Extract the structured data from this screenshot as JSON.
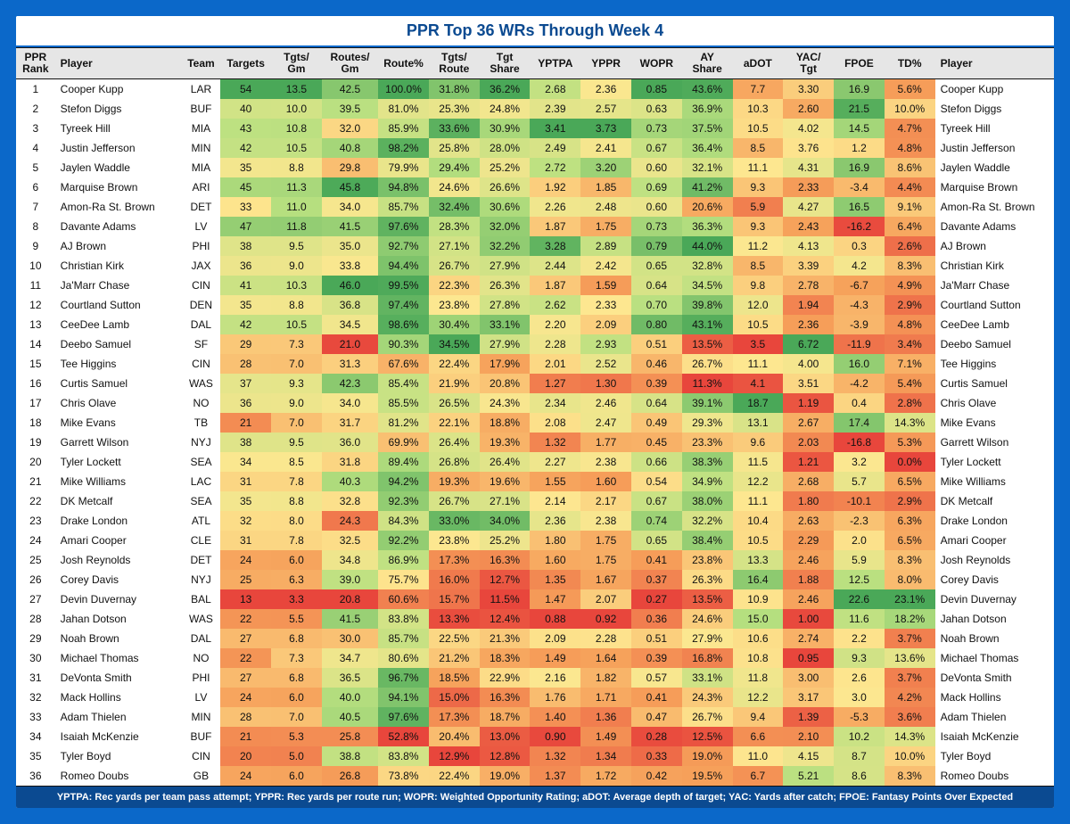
{
  "title": "PPR Top 36 WRs Through Week 4",
  "footer": "YPTPA: Rec yards per team pass attempt; YPPR: Rec yards per route run; WOPR: Weighted Opportunity Rating; aDOT: Average depth of target; YAC: Yards after catch; FPOE: Fantasy Points Over Expected",
  "columns": [
    {
      "key": "rank",
      "label": "PPR Rank",
      "heat": false,
      "fmt": "int",
      "align": "center",
      "w": "c-rank"
    },
    {
      "key": "player",
      "label": "Player",
      "heat": false,
      "fmt": "text",
      "align": "left",
      "w": "c-player"
    },
    {
      "key": "team",
      "label": "Team",
      "heat": false,
      "fmt": "text",
      "align": "center",
      "w": "c-team"
    },
    {
      "key": "targets",
      "label": "Targets",
      "heat": true,
      "fmt": "int",
      "align": "center",
      "w": "c-num"
    },
    {
      "key": "tgts_gm",
      "label": "Tgts/ Gm",
      "heat": true,
      "fmt": "dec1",
      "align": "center",
      "w": "c-num"
    },
    {
      "key": "routes_gm",
      "label": "Routes/ Gm",
      "heat": true,
      "fmt": "dec1",
      "align": "center",
      "w": "c-num-w"
    },
    {
      "key": "route_pct",
      "label": "Route%",
      "heat": true,
      "fmt": "pct1",
      "align": "center",
      "w": "c-num"
    },
    {
      "key": "tgts_route",
      "label": "Tgts/ Route",
      "heat": true,
      "fmt": "pct1",
      "align": "center",
      "w": "c-num"
    },
    {
      "key": "tgt_share",
      "label": "Tgt Share",
      "heat": true,
      "fmt": "pct1",
      "align": "center",
      "w": "c-num"
    },
    {
      "key": "yptpa",
      "label": "YPTPA",
      "heat": true,
      "fmt": "dec2",
      "align": "center",
      "w": "c-num"
    },
    {
      "key": "yppr",
      "label": "YPPR",
      "heat": true,
      "fmt": "dec2",
      "align": "center",
      "w": "c-num"
    },
    {
      "key": "wopr",
      "label": "WOPR",
      "heat": true,
      "fmt": "dec2",
      "align": "center",
      "w": "c-num"
    },
    {
      "key": "ay_share",
      "label": "AY Share",
      "heat": true,
      "fmt": "pct1",
      "align": "center",
      "w": "c-num"
    },
    {
      "key": "adot",
      "label": "aDOT",
      "heat": true,
      "fmt": "dec1",
      "align": "center",
      "w": "c-num"
    },
    {
      "key": "yac_tgt",
      "label": "YAC/ Tgt",
      "heat": true,
      "fmt": "dec2",
      "align": "center",
      "w": "c-num"
    },
    {
      "key": "fpoe",
      "label": "FPOE",
      "heat": true,
      "fmt": "dec1",
      "align": "center",
      "w": "c-num"
    },
    {
      "key": "td_pct",
      "label": "TD%",
      "heat": true,
      "fmt": "pct1",
      "align": "center",
      "w": "c-num"
    },
    {
      "key": "player2",
      "label": "Player",
      "heat": false,
      "fmt": "text",
      "align": "left",
      "w": "c-player2"
    }
  ],
  "heat_scale": {
    "stops": [
      {
        "t": 0.0,
        "color": "#e8463c"
      },
      {
        "t": 0.25,
        "color": "#f6a05a"
      },
      {
        "t": 0.5,
        "color": "#fde790"
      },
      {
        "t": 0.75,
        "color": "#b8e080"
      },
      {
        "t": 1.0,
        "color": "#4aa858"
      }
    ]
  },
  "rows": [
    {
      "rank": 1,
      "player": "Cooper Kupp",
      "team": "LAR",
      "targets": 54,
      "tgts_gm": 13.5,
      "routes_gm": 42.5,
      "route_pct": 100.0,
      "tgts_route": 31.8,
      "tgt_share": 36.2,
      "yptpa": 2.68,
      "yppr": 2.36,
      "wopr": 0.85,
      "ay_share": 43.6,
      "adot": 7.7,
      "yac_tgt": 3.3,
      "fpoe": 16.9,
      "td_pct": 5.6
    },
    {
      "rank": 2,
      "player": "Stefon Diggs",
      "team": "BUF",
      "targets": 40,
      "tgts_gm": 10.0,
      "routes_gm": 39.5,
      "route_pct": 81.0,
      "tgts_route": 25.3,
      "tgt_share": 24.8,
      "yptpa": 2.39,
      "yppr": 2.57,
      "wopr": 0.63,
      "ay_share": 36.9,
      "adot": 10.3,
      "yac_tgt": 2.6,
      "fpoe": 21.5,
      "td_pct": 10.0
    },
    {
      "rank": 3,
      "player": "Tyreek Hill",
      "team": "MIA",
      "targets": 43,
      "tgts_gm": 10.8,
      "routes_gm": 32.0,
      "route_pct": 85.9,
      "tgts_route": 33.6,
      "tgt_share": 30.9,
      "yptpa": 3.41,
      "yppr": 3.73,
      "wopr": 0.73,
      "ay_share": 37.5,
      "adot": 10.5,
      "yac_tgt": 4.02,
      "fpoe": 14.5,
      "td_pct": 4.7
    },
    {
      "rank": 4,
      "player": "Justin Jefferson",
      "team": "MIN",
      "targets": 42,
      "tgts_gm": 10.5,
      "routes_gm": 40.8,
      "route_pct": 98.2,
      "tgts_route": 25.8,
      "tgt_share": 28.0,
      "yptpa": 2.49,
      "yppr": 2.41,
      "wopr": 0.67,
      "ay_share": 36.4,
      "adot": 8.5,
      "yac_tgt": 3.76,
      "fpoe": 1.2,
      "td_pct": 4.8
    },
    {
      "rank": 5,
      "player": "Jaylen Waddle",
      "team": "MIA",
      "targets": 35,
      "tgts_gm": 8.8,
      "routes_gm": 29.8,
      "route_pct": 79.9,
      "tgts_route": 29.4,
      "tgt_share": 25.2,
      "yptpa": 2.72,
      "yppr": 3.2,
      "wopr": 0.6,
      "ay_share": 32.1,
      "adot": 11.1,
      "yac_tgt": 4.31,
      "fpoe": 16.9,
      "td_pct": 8.6
    },
    {
      "rank": 6,
      "player": "Marquise Brown",
      "team": "ARI",
      "targets": 45,
      "tgts_gm": 11.3,
      "routes_gm": 45.8,
      "route_pct": 94.8,
      "tgts_route": 24.6,
      "tgt_share": 26.6,
      "yptpa": 1.92,
      "yppr": 1.85,
      "wopr": 0.69,
      "ay_share": 41.2,
      "adot": 9.3,
      "yac_tgt": 2.33,
      "fpoe": -3.4,
      "td_pct": 4.4
    },
    {
      "rank": 7,
      "player": "Amon-Ra St. Brown",
      "team": "DET",
      "targets": 33,
      "tgts_gm": 11.0,
      "routes_gm": 34.0,
      "route_pct": 85.7,
      "tgts_route": 32.4,
      "tgt_share": 30.6,
      "yptpa": 2.26,
      "yppr": 2.48,
      "wopr": 0.6,
      "ay_share": 20.6,
      "adot": 5.9,
      "yac_tgt": 4.27,
      "fpoe": 16.5,
      "td_pct": 9.1
    },
    {
      "rank": 8,
      "player": "Davante Adams",
      "team": "LV",
      "targets": 47,
      "tgts_gm": 11.8,
      "routes_gm": 41.5,
      "route_pct": 97.6,
      "tgts_route": 28.3,
      "tgt_share": 32.0,
      "yptpa": 1.87,
      "yppr": 1.75,
      "wopr": 0.73,
      "ay_share": 36.3,
      "adot": 9.3,
      "yac_tgt": 2.43,
      "fpoe": -16.2,
      "td_pct": 6.4
    },
    {
      "rank": 9,
      "player": "AJ Brown",
      "team": "PHI",
      "targets": 38,
      "tgts_gm": 9.5,
      "routes_gm": 35.0,
      "route_pct": 92.7,
      "tgts_route": 27.1,
      "tgt_share": 32.2,
      "yptpa": 3.28,
      "yppr": 2.89,
      "wopr": 0.79,
      "ay_share": 44.0,
      "adot": 11.2,
      "yac_tgt": 4.13,
      "fpoe": 0.3,
      "td_pct": 2.6
    },
    {
      "rank": 10,
      "player": "Christian Kirk",
      "team": "JAX",
      "targets": 36,
      "tgts_gm": 9.0,
      "routes_gm": 33.8,
      "route_pct": 94.4,
      "tgts_route": 26.7,
      "tgt_share": 27.9,
      "yptpa": 2.44,
      "yppr": 2.42,
      "wopr": 0.65,
      "ay_share": 32.8,
      "adot": 8.5,
      "yac_tgt": 3.39,
      "fpoe": 4.2,
      "td_pct": 8.3
    },
    {
      "rank": 11,
      "player": "Ja'Marr Chase",
      "team": "CIN",
      "targets": 41,
      "tgts_gm": 10.3,
      "routes_gm": 46.0,
      "route_pct": 99.5,
      "tgts_route": 22.3,
      "tgt_share": 26.3,
      "yptpa": 1.87,
      "yppr": 1.59,
      "wopr": 0.64,
      "ay_share": 34.5,
      "adot": 9.8,
      "yac_tgt": 2.78,
      "fpoe": -6.7,
      "td_pct": 4.9
    },
    {
      "rank": 12,
      "player": "Courtland Sutton",
      "team": "DEN",
      "targets": 35,
      "tgts_gm": 8.8,
      "routes_gm": 36.8,
      "route_pct": 97.4,
      "tgts_route": 23.8,
      "tgt_share": 27.8,
      "yptpa": 2.62,
      "yppr": 2.33,
      "wopr": 0.7,
      "ay_share": 39.8,
      "adot": 12.0,
      "yac_tgt": 1.94,
      "fpoe": -4.3,
      "td_pct": 2.9
    },
    {
      "rank": 13,
      "player": "CeeDee Lamb",
      "team": "DAL",
      "targets": 42,
      "tgts_gm": 10.5,
      "routes_gm": 34.5,
      "route_pct": 98.6,
      "tgts_route": 30.4,
      "tgt_share": 33.1,
      "yptpa": 2.2,
      "yppr": 2.09,
      "wopr": 0.8,
      "ay_share": 43.1,
      "adot": 10.5,
      "yac_tgt": 2.36,
      "fpoe": -3.9,
      "td_pct": 4.8
    },
    {
      "rank": 14,
      "player": "Deebo Samuel",
      "team": "SF",
      "targets": 29,
      "tgts_gm": 7.3,
      "routes_gm": 21.0,
      "route_pct": 90.3,
      "tgts_route": 34.5,
      "tgt_share": 27.9,
      "yptpa": 2.28,
      "yppr": 2.93,
      "wopr": 0.51,
      "ay_share": 13.5,
      "adot": 3.5,
      "yac_tgt": 6.72,
      "fpoe": -11.9,
      "td_pct": 3.4
    },
    {
      "rank": 15,
      "player": "Tee Higgins",
      "team": "CIN",
      "targets": 28,
      "tgts_gm": 7.0,
      "routes_gm": 31.3,
      "route_pct": 67.6,
      "tgts_route": 22.4,
      "tgt_share": 17.9,
      "yptpa": 2.01,
      "yppr": 2.52,
      "wopr": 0.46,
      "ay_share": 26.7,
      "adot": 11.1,
      "yac_tgt": 4.0,
      "fpoe": 16.0,
      "td_pct": 7.1
    },
    {
      "rank": 16,
      "player": "Curtis Samuel",
      "team": "WAS",
      "targets": 37,
      "tgts_gm": 9.3,
      "routes_gm": 42.3,
      "route_pct": 85.4,
      "tgts_route": 21.9,
      "tgt_share": 20.8,
      "yptpa": 1.27,
      "yppr": 1.3,
      "wopr": 0.39,
      "ay_share": 11.3,
      "adot": 4.1,
      "yac_tgt": 3.51,
      "fpoe": -4.2,
      "td_pct": 5.4
    },
    {
      "rank": 17,
      "player": "Chris Olave",
      "team": "NO",
      "targets": 36,
      "tgts_gm": 9.0,
      "routes_gm": 34.0,
      "route_pct": 85.5,
      "tgts_route": 26.5,
      "tgt_share": 24.3,
      "yptpa": 2.34,
      "yppr": 2.46,
      "wopr": 0.64,
      "ay_share": 39.1,
      "adot": 18.7,
      "yac_tgt": 1.19,
      "fpoe": 0.4,
      "td_pct": 2.8
    },
    {
      "rank": 18,
      "player": "Mike Evans",
      "team": "TB",
      "targets": 21,
      "tgts_gm": 7.0,
      "routes_gm": 31.7,
      "route_pct": 81.2,
      "tgts_route": 22.1,
      "tgt_share": 18.8,
      "yptpa": 2.08,
      "yppr": 2.47,
      "wopr": 0.49,
      "ay_share": 29.3,
      "adot": 13.1,
      "yac_tgt": 2.67,
      "fpoe": 17.4,
      "td_pct": 14.3
    },
    {
      "rank": 19,
      "player": "Garrett Wilson",
      "team": "NYJ",
      "targets": 38,
      "tgts_gm": 9.5,
      "routes_gm": 36.0,
      "route_pct": 69.9,
      "tgts_route": 26.4,
      "tgt_share": 19.3,
      "yptpa": 1.32,
      "yppr": 1.77,
      "wopr": 0.45,
      "ay_share": 23.3,
      "adot": 9.6,
      "yac_tgt": 2.03,
      "fpoe": -16.8,
      "td_pct": 5.3
    },
    {
      "rank": 20,
      "player": "Tyler Lockett",
      "team": "SEA",
      "targets": 34,
      "tgts_gm": 8.5,
      "routes_gm": 31.8,
      "route_pct": 89.4,
      "tgts_route": 26.8,
      "tgt_share": 26.4,
      "yptpa": 2.27,
      "yppr": 2.38,
      "wopr": 0.66,
      "ay_share": 38.3,
      "adot": 11.5,
      "yac_tgt": 1.21,
      "fpoe": 3.2,
      "td_pct": 0.0
    },
    {
      "rank": 21,
      "player": "Mike Williams",
      "team": "LAC",
      "targets": 31,
      "tgts_gm": 7.8,
      "routes_gm": 40.3,
      "route_pct": 94.2,
      "tgts_route": 19.3,
      "tgt_share": 19.6,
      "yptpa": 1.55,
      "yppr": 1.6,
      "wopr": 0.54,
      "ay_share": 34.9,
      "adot": 12.2,
      "yac_tgt": 2.68,
      "fpoe": 5.7,
      "td_pct": 6.5
    },
    {
      "rank": 22,
      "player": "DK Metcalf",
      "team": "SEA",
      "targets": 35,
      "tgts_gm": 8.8,
      "routes_gm": 32.8,
      "route_pct": 92.3,
      "tgts_route": 26.7,
      "tgt_share": 27.1,
      "yptpa": 2.14,
      "yppr": 2.17,
      "wopr": 0.67,
      "ay_share": 38.0,
      "adot": 11.1,
      "yac_tgt": 1.8,
      "fpoe": -10.1,
      "td_pct": 2.9
    },
    {
      "rank": 23,
      "player": "Drake London",
      "team": "ATL",
      "targets": 32,
      "tgts_gm": 8.0,
      "routes_gm": 24.3,
      "route_pct": 84.3,
      "tgts_route": 33.0,
      "tgt_share": 34.0,
      "yptpa": 2.36,
      "yppr": 2.38,
      "wopr": 0.74,
      "ay_share": 32.2,
      "adot": 10.4,
      "yac_tgt": 2.63,
      "fpoe": -2.3,
      "td_pct": 6.3
    },
    {
      "rank": 24,
      "player": "Amari Cooper",
      "team": "CLE",
      "targets": 31,
      "tgts_gm": 7.8,
      "routes_gm": 32.5,
      "route_pct": 92.2,
      "tgts_route": 23.8,
      "tgt_share": 25.2,
      "yptpa": 1.8,
      "yppr": 1.75,
      "wopr": 0.65,
      "ay_share": 38.4,
      "adot": 10.5,
      "yac_tgt": 2.29,
      "fpoe": 2.0,
      "td_pct": 6.5
    },
    {
      "rank": 25,
      "player": "Josh Reynolds",
      "team": "DET",
      "targets": 24,
      "tgts_gm": 6.0,
      "routes_gm": 34.8,
      "route_pct": 86.9,
      "tgts_route": 17.3,
      "tgt_share": 16.3,
      "yptpa": 1.6,
      "yppr": 1.75,
      "wopr": 0.41,
      "ay_share": 23.8,
      "adot": 13.3,
      "yac_tgt": 2.46,
      "fpoe": 5.9,
      "td_pct": 8.3
    },
    {
      "rank": 26,
      "player": "Corey Davis",
      "team": "NYJ",
      "targets": 25,
      "tgts_gm": 6.3,
      "routes_gm": 39.0,
      "route_pct": 75.7,
      "tgts_route": 16.0,
      "tgt_share": 12.7,
      "yptpa": 1.35,
      "yppr": 1.67,
      "wopr": 0.37,
      "ay_share": 26.3,
      "adot": 16.4,
      "yac_tgt": 1.88,
      "fpoe": 12.5,
      "td_pct": 8.0
    },
    {
      "rank": 27,
      "player": "Devin Duvernay",
      "team": "BAL",
      "targets": 13,
      "tgts_gm": 3.3,
      "routes_gm": 20.8,
      "route_pct": 60.6,
      "tgts_route": 15.7,
      "tgt_share": 11.5,
      "yptpa": 1.47,
      "yppr": 2.07,
      "wopr": 0.27,
      "ay_share": 13.5,
      "adot": 10.9,
      "yac_tgt": 2.46,
      "fpoe": 22.6,
      "td_pct": 23.1
    },
    {
      "rank": 28,
      "player": "Jahan Dotson",
      "team": "WAS",
      "targets": 22,
      "tgts_gm": 5.5,
      "routes_gm": 41.5,
      "route_pct": 83.8,
      "tgts_route": 13.3,
      "tgt_share": 12.4,
      "yptpa": 0.88,
      "yppr": 0.92,
      "wopr": 0.36,
      "ay_share": 24.6,
      "adot": 15.0,
      "yac_tgt": 1.0,
      "fpoe": 11.6,
      "td_pct": 18.2
    },
    {
      "rank": 29,
      "player": "Noah Brown",
      "team": "DAL",
      "targets": 27,
      "tgts_gm": 6.8,
      "routes_gm": 30.0,
      "route_pct": 85.7,
      "tgts_route": 22.5,
      "tgt_share": 21.3,
      "yptpa": 2.09,
      "yppr": 2.28,
      "wopr": 0.51,
      "ay_share": 27.9,
      "adot": 10.6,
      "yac_tgt": 2.74,
      "fpoe": 2.2,
      "td_pct": 3.7
    },
    {
      "rank": 30,
      "player": "Michael Thomas",
      "team": "NO",
      "targets": 22,
      "tgts_gm": 7.3,
      "routes_gm": 34.7,
      "route_pct": 80.6,
      "tgts_route": 21.2,
      "tgt_share": 18.3,
      "yptpa": 1.49,
      "yppr": 1.64,
      "wopr": 0.39,
      "ay_share": 16.8,
      "adot": 10.8,
      "yac_tgt": 0.95,
      "fpoe": 9.3,
      "td_pct": 13.6
    },
    {
      "rank": 31,
      "player": "DeVonta Smith",
      "team": "PHI",
      "targets": 27,
      "tgts_gm": 6.8,
      "routes_gm": 36.5,
      "route_pct": 96.7,
      "tgts_route": 18.5,
      "tgt_share": 22.9,
      "yptpa": 2.16,
      "yppr": 1.82,
      "wopr": 0.57,
      "ay_share": 33.1,
      "adot": 11.8,
      "yac_tgt": 3.0,
      "fpoe": 2.6,
      "td_pct": 3.7
    },
    {
      "rank": 32,
      "player": "Mack Hollins",
      "team": "LV",
      "targets": 24,
      "tgts_gm": 6.0,
      "routes_gm": 40.0,
      "route_pct": 94.1,
      "tgts_route": 15.0,
      "tgt_share": 16.3,
      "yptpa": 1.76,
      "yppr": 1.71,
      "wopr": 0.41,
      "ay_share": 24.3,
      "adot": 12.2,
      "yac_tgt": 3.17,
      "fpoe": 3.0,
      "td_pct": 4.2
    },
    {
      "rank": 33,
      "player": "Adam Thielen",
      "team": "MIN",
      "targets": 28,
      "tgts_gm": 7.0,
      "routes_gm": 40.5,
      "route_pct": 97.6,
      "tgts_route": 17.3,
      "tgt_share": 18.7,
      "yptpa": 1.4,
      "yppr": 1.36,
      "wopr": 0.47,
      "ay_share": 26.7,
      "adot": 9.4,
      "yac_tgt": 1.39,
      "fpoe": -5.3,
      "td_pct": 3.6
    },
    {
      "rank": 34,
      "player": "Isaiah McKenzie",
      "team": "BUF",
      "targets": 21,
      "tgts_gm": 5.3,
      "routes_gm": 25.8,
      "route_pct": 52.8,
      "tgts_route": 20.4,
      "tgt_share": 13.0,
      "yptpa": 0.9,
      "yppr": 1.49,
      "wopr": 0.28,
      "ay_share": 12.5,
      "adot": 6.6,
      "yac_tgt": 2.1,
      "fpoe": 10.2,
      "td_pct": 14.3
    },
    {
      "rank": 35,
      "player": "Tyler Boyd",
      "team": "CIN",
      "targets": 20,
      "tgts_gm": 5.0,
      "routes_gm": 38.8,
      "route_pct": 83.8,
      "tgts_route": 12.9,
      "tgt_share": 12.8,
      "yptpa": 1.32,
      "yppr": 1.34,
      "wopr": 0.33,
      "ay_share": 19.0,
      "adot": 11.0,
      "yac_tgt": 4.15,
      "fpoe": 8.7,
      "td_pct": 10.0
    },
    {
      "rank": 36,
      "player": "Romeo Doubs",
      "team": "GB",
      "targets": 24,
      "tgts_gm": 6.0,
      "routes_gm": 26.8,
      "route_pct": 73.8,
      "tgts_route": 22.4,
      "tgt_share": 19.0,
      "yptpa": 1.37,
      "yppr": 1.72,
      "wopr": 0.42,
      "ay_share": 19.5,
      "adot": 6.7,
      "yac_tgt": 5.21,
      "fpoe": 8.6,
      "td_pct": 8.3
    }
  ]
}
